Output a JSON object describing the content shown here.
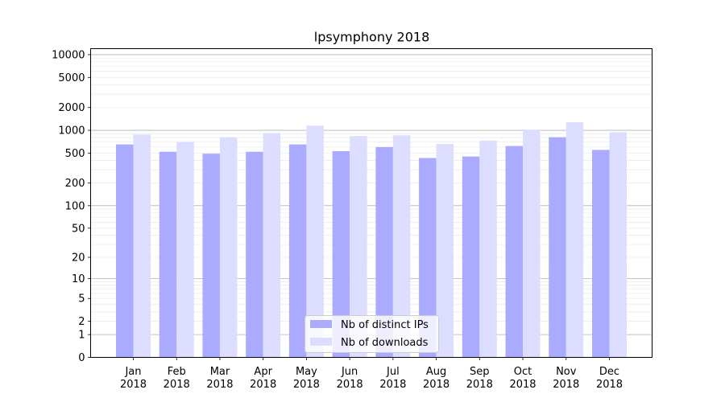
{
  "chart_data": {
    "type": "bar",
    "title": "lpsymphony 2018",
    "xlabel": "",
    "ylabel": "",
    "yscale": "symlog",
    "ylim": [
      0,
      12000
    ],
    "yticks": [
      "0",
      "1",
      "2",
      "5",
      "10",
      "20",
      "50",
      "100",
      "200",
      "500",
      "1000",
      "2000",
      "5000",
      "10000"
    ],
    "categories": [
      [
        "Jan",
        "2018"
      ],
      [
        "Feb",
        "2018"
      ],
      [
        "Mar",
        "2018"
      ],
      [
        "Apr",
        "2018"
      ],
      [
        "May",
        "2018"
      ],
      [
        "Jun",
        "2018"
      ],
      [
        "Jul",
        "2018"
      ],
      [
        "Aug",
        "2018"
      ],
      [
        "Sep",
        "2018"
      ],
      [
        "Oct",
        "2018"
      ],
      [
        "Nov",
        "2018"
      ],
      [
        "Dec",
        "2018"
      ]
    ],
    "series": [
      {
        "name": "Nb of distinct IPs",
        "color": "#aaaaff",
        "values": [
          650,
          520,
          490,
          520,
          650,
          530,
          600,
          430,
          450,
          620,
          810,
          550
        ]
      },
      {
        "name": "Nb of downloads",
        "color": "#ddddff",
        "values": [
          880,
          700,
          810,
          920,
          1150,
          840,
          860,
          660,
          730,
          1020,
          1280,
          940
        ]
      }
    ],
    "grid": true,
    "legend_position": "lower center"
  }
}
